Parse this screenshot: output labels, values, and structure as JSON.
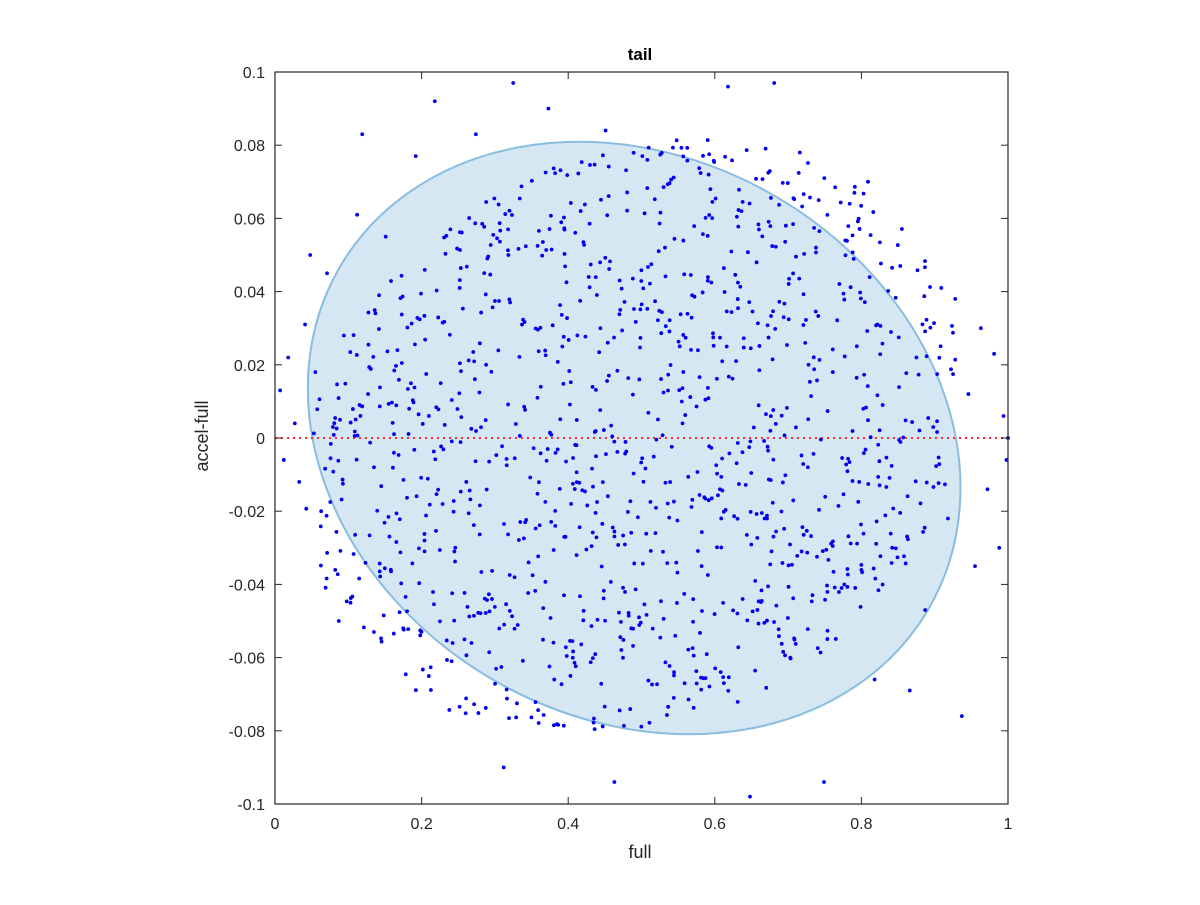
{
  "chart_data": {
    "type": "scatter",
    "title": "tail",
    "xlabel": "full",
    "ylabel": "accel-full",
    "xlim": [
      0,
      1
    ],
    "ylim": [
      -0.1,
      0.1
    ],
    "xticks": [
      0,
      0.2,
      0.4,
      0.6,
      0.8,
      1
    ],
    "xtick_labels": [
      "0",
      "0.2",
      "0.4",
      "0.6",
      "0.8",
      "1"
    ],
    "yticks": [
      -0.1,
      -0.08,
      -0.06,
      -0.04,
      -0.02,
      0,
      0.02,
      0.04,
      0.06,
      0.08,
      0.1
    ],
    "ytick_labels": [
      "-0.1",
      "-0.08",
      "-0.06",
      "-0.04",
      "-0.02",
      "0",
      "0.02",
      "0.04",
      "0.06",
      "0.08",
      "0.1"
    ],
    "grid": false,
    "colors": {
      "points": "#0000ee",
      "ellipse_fill": "#d6e7f4",
      "ellipse_stroke": "#88bce0",
      "zero_line": "#ff2a2a",
      "axes": "#262626"
    },
    "ellipse": {
      "center": [
        0.49,
        0.0
      ],
      "semi_major_x": 0.57,
      "semi_minor_y": 0.093,
      "angle_deg": -60
    },
    "zero_line": {
      "y": 0,
      "style": "dotted"
    },
    "approx_point_count": 1200,
    "points": [
      [
        0.007,
        0.013
      ],
      [
        0.012,
        -0.006
      ],
      [
        0.018,
        0.022
      ],
      [
        0.027,
        0.004
      ],
      [
        0.033,
        -0.012
      ],
      [
        0.041,
        0.031
      ],
      [
        0.048,
        0.05
      ],
      [
        0.055,
        0.018
      ],
      [
        0.063,
        -0.02
      ],
      [
        0.071,
        0.045
      ],
      [
        0.079,
        0.003
      ],
      [
        0.087,
        -0.05
      ],
      [
        0.094,
        0.028
      ],
      [
        0.103,
        -0.045
      ],
      [
        0.112,
        0.061
      ],
      [
        0.119,
        0.083
      ],
      [
        0.127,
        0.012
      ],
      [
        0.135,
        -0.008
      ],
      [
        0.142,
        0.039
      ],
      [
        0.151,
        0.055
      ],
      [
        0.158,
        -0.036
      ],
      [
        0.167,
        0.024
      ],
      [
        0.175,
        -0.052
      ],
      [
        0.183,
        0.008
      ],
      [
        0.192,
        0.077
      ],
      [
        0.204,
        -0.028
      ],
      [
        0.218,
        0.092
      ],
      [
        0.226,
        0.015
      ],
      [
        0.241,
        -0.061
      ],
      [
        0.252,
        0.041
      ],
      [
        0.261,
        -0.012
      ],
      [
        0.274,
        0.083
      ],
      [
        0.288,
        0.02
      ],
      [
        0.296,
        -0.044
      ],
      [
        0.312,
        -0.09
      ],
      [
        0.318,
        0.057
      ],
      [
        0.325,
        0.097
      ],
      [
        0.337,
        0.031
      ],
      [
        0.346,
        -0.034
      ],
      [
        0.358,
        0.011
      ],
      [
        0.373,
        0.09
      ],
      [
        0.381,
        -0.066
      ],
      [
        0.392,
        0.025
      ],
      [
        0.404,
        -0.018
      ],
      [
        0.417,
        0.062
      ],
      [
        0.428,
        0.044
      ],
      [
        0.438,
        -0.005
      ],
      [
        0.451,
        0.084
      ],
      [
        0.463,
        -0.094
      ],
      [
        0.471,
        0.035
      ],
      [
        0.486,
        -0.052
      ],
      [
        0.497,
        0.016
      ],
      [
        0.508,
        0.076
      ],
      [
        0.519,
        -0.026
      ],
      [
        0.532,
        0.052
      ],
      [
        0.544,
        -0.071
      ],
      [
        0.556,
        0.004
      ],
      [
        0.569,
        0.039
      ],
      [
        0.582,
        -0.035
      ],
      [
        0.594,
        0.068
      ],
      [
        0.607,
        -0.014
      ],
      [
        0.618,
        0.096
      ],
      [
        0.629,
        0.021
      ],
      [
        0.638,
        -0.044
      ],
      [
        0.648,
        -0.098
      ],
      [
        0.657,
        0.048
      ],
      [
        0.668,
        -0.022
      ],
      [
        0.681,
        0.097
      ],
      [
        0.694,
        0.033
      ],
      [
        0.703,
        -0.06
      ],
      [
        0.716,
        0.078
      ],
      [
        0.727,
        -0.008
      ],
      [
        0.738,
        0.052
      ],
      [
        0.749,
        -0.094
      ],
      [
        0.761,
        0.018
      ],
      [
        0.773,
        -0.041
      ],
      [
        0.784,
        0.064
      ],
      [
        0.797,
        -0.012
      ],
      [
        0.809,
        0.07
      ],
      [
        0.818,
        -0.066
      ],
      [
        0.829,
        0.009
      ],
      [
        0.842,
        -0.03
      ],
      [
        0.853,
        0.047
      ],
      [
        0.866,
        -0.069
      ],
      [
        0.875,
        0.022
      ],
      [
        0.887,
        -0.047
      ],
      [
        0.898,
        0.003
      ],
      [
        0.909,
        0.041
      ],
      [
        0.918,
        -0.022
      ],
      [
        0.928,
        0.038
      ],
      [
        0.937,
        -0.076
      ],
      [
        0.946,
        0.012
      ],
      [
        0.955,
        -0.035
      ],
      [
        0.963,
        0.03
      ],
      [
        0.972,
        -0.014
      ],
      [
        0.981,
        0.023
      ],
      [
        0.988,
        -0.03
      ],
      [
        0.994,
        0.006
      ],
      [
        0.998,
        -0.006
      ],
      [
        1.0,
        0.0
      ]
    ]
  }
}
